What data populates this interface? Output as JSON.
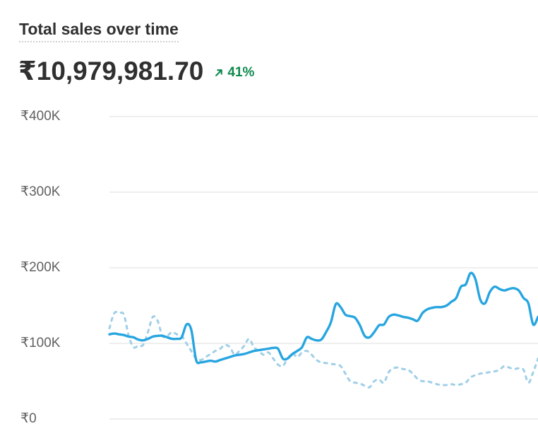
{
  "header": {
    "title": "Total sales over time",
    "total": "₹10,979,981.70",
    "change_percent": "41%",
    "change_direction": "up",
    "change_color": "#0f8a4e"
  },
  "chart_data": {
    "type": "line",
    "title": "Total sales over time",
    "xlabel": "",
    "ylabel": "",
    "ylim": [
      0,
      400000
    ],
    "yticks": [
      0,
      100000,
      200000,
      300000,
      400000
    ],
    "ytick_labels": [
      "₹0",
      "₹100K",
      "₹200K",
      "₹300K",
      "₹400K"
    ],
    "grid": true,
    "legend": "none",
    "colors": {
      "current": "#27a5e0",
      "previous": "#9fcfe8"
    },
    "series": [
      {
        "style": "solid",
        "values": [
          112000,
          113000,
          112000,
          111000,
          109000,
          108000,
          105000,
          104000,
          106000,
          109000,
          110000,
          110000,
          108000,
          106000,
          106000,
          108000,
          125000,
          118000,
          78000,
          75000,
          76000,
          77000,
          76000,
          78000,
          80000,
          82000,
          84000,
          85000,
          86000,
          88000,
          90000,
          91000,
          92000,
          93000,
          94000,
          93000,
          80000,
          80000,
          86000,
          90000,
          95000,
          108000,
          106000,
          104000,
          105000,
          115000,
          128000,
          152000,
          148000,
          138000,
          136000,
          134000,
          124000,
          110000,
          108000,
          115000,
          124000,
          125000,
          135000,
          138000,
          137000,
          135000,
          134000,
          132000,
          130000,
          140000,
          145000,
          147000,
          148000,
          148000,
          150000,
          155000,
          160000,
          175000,
          178000,
          193000,
          185000,
          158000,
          153000,
          168000,
          175000,
          172000,
          170000,
          172000,
          173000,
          170000,
          160000,
          153000,
          125000,
          135000
        ]
      },
      {
        "style": "dashed",
        "values": [
          120000,
          140000,
          140000,
          138000,
          110000,
          95000,
          97000,
          98000,
          115000,
          135000,
          130000,
          110000,
          110000,
          115000,
          112000,
          110000,
          100000,
          90000,
          80000,
          78000,
          82000,
          86000,
          90000,
          93000,
          98000,
          95000,
          85000,
          90000,
          97000,
          106000,
          95000,
          90000,
          85000,
          88000,
          80000,
          72000,
          70000,
          80000,
          87000,
          82000,
          88000,
          90000,
          85000,
          78000,
          75000,
          74000,
          73000,
          72000,
          70000,
          60000,
          50000,
          48000,
          47000,
          44000,
          42000,
          50000,
          52000,
          48000,
          62000,
          67000,
          68000,
          66000,
          65000,
          60000,
          53000,
          50000,
          50000,
          48000,
          46000,
          45000,
          45000,
          46000,
          45000,
          46000,
          48000,
          55000,
          58000,
          60000,
          61000,
          62000,
          63000,
          65000,
          70000,
          68000,
          66000,
          67000,
          65000,
          48000,
          62000,
          80000
        ]
      }
    ]
  }
}
